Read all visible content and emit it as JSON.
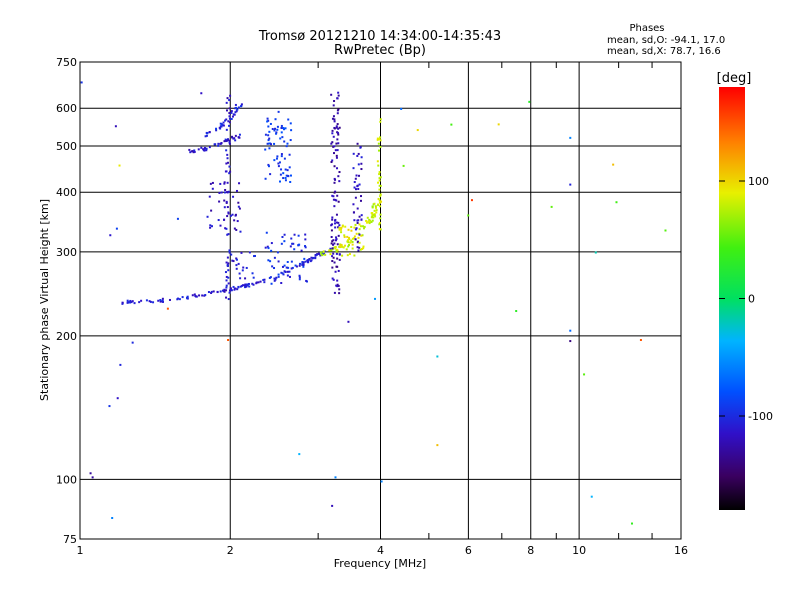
{
  "header": {
    "title_line1": "Tromsø 20121210 14:34:00-14:35:43",
    "title_line2": "RwPretec (Bp)"
  },
  "stats": {
    "heading": "Phases",
    "o_line": "mean, sd,O: -94.1, 17.0",
    "x_line": "mean, sd,X:  78.7, 16.6"
  },
  "colorbar": {
    "label": "[deg]",
    "min": -180,
    "max": 180,
    "ticks": [
      {
        "value": 100,
        "label": "100"
      },
      {
        "value": 0,
        "label": "0"
      },
      {
        "value": -100,
        "label": "-100"
      }
    ]
  },
  "chart_data": {
    "type": "scatter",
    "title": "Tromsø 20121210 14:34:00-14:35:43",
    "subtitle": "RwPretec (Bp)",
    "xlabel": "Frequency [MHz]",
    "ylabel": "Stationary phase Virtual Height [km]",
    "xscale": "log",
    "yscale": "log",
    "xlim": [
      1,
      16
    ],
    "ylim": [
      75,
      750
    ],
    "xticks": [
      {
        "value": 1,
        "label": "1"
      },
      {
        "value": 2,
        "label": "2"
      },
      {
        "value": 4,
        "label": "4"
      },
      {
        "value": 6,
        "label": "6"
      },
      {
        "value": 8,
        "label": "8"
      },
      {
        "value": 10,
        "label": "10"
      },
      {
        "value": 16,
        "label": "16"
      }
    ],
    "x_minor_ticks": [
      3,
      5,
      7,
      9,
      12,
      14
    ],
    "x_gridlines": [
      2,
      4,
      6,
      8,
      10
    ],
    "yticks": [
      {
        "value": 75,
        "label": "75"
      },
      {
        "value": 100,
        "label": "100"
      },
      {
        "value": 200,
        "label": "200"
      },
      {
        "value": 300,
        "label": "300"
      },
      {
        "value": 400,
        "label": "400"
      },
      {
        "value": 500,
        "label": "500"
      },
      {
        "value": 600,
        "label": "600"
      },
      {
        "value": 750,
        "label": "750"
      }
    ],
    "y_gridlines": [
      100,
      200,
      300,
      400,
      500,
      600
    ],
    "grid": true,
    "color_by": "phase_deg",
    "structures": [
      {
        "kind": "curve",
        "pts": [
          [
            1.2,
            235
          ],
          [
            1.4,
            236
          ],
          [
            1.6,
            240
          ],
          [
            1.8,
            245
          ],
          [
            2.0,
            250
          ],
          [
            2.2,
            256
          ],
          [
            2.4,
            263
          ],
          [
            2.6,
            272
          ],
          [
            2.8,
            283
          ],
          [
            3.0,
            295
          ],
          [
            3.2,
            305
          ]
        ],
        "phase": -108,
        "n": 140,
        "spread": 0.015
      },
      {
        "kind": "curve",
        "pts": [
          [
            3.0,
            297
          ],
          [
            3.2,
            300
          ],
          [
            3.4,
            310
          ],
          [
            3.6,
            325
          ],
          [
            3.8,
            350
          ],
          [
            3.9,
            370
          ],
          [
            3.95,
            390
          ]
        ],
        "phase": 78,
        "n": 75,
        "spread": 0.03
      },
      {
        "kind": "curve",
        "pts": [
          [
            1.65,
            485
          ],
          [
            1.8,
            495
          ],
          [
            2.0,
            515
          ],
          [
            2.1,
            525
          ]
        ],
        "phase": -112,
        "n": 40,
        "spread": 0.02
      },
      {
        "kind": "curve",
        "pts": [
          [
            1.75,
            520
          ],
          [
            1.9,
            545
          ],
          [
            2.0,
            570
          ],
          [
            2.05,
            600
          ],
          [
            2.1,
            610
          ]
        ],
        "phase": -105,
        "n": 40,
        "spread": 0.02
      },
      {
        "kind": "vline",
        "x": 1.98,
        "y": [
          235,
          640
        ],
        "phase": -112,
        "n": 60,
        "spread": 0.01
      },
      {
        "kind": "vline",
        "x": 3.25,
        "y": [
          245,
          650
        ],
        "phase": -125,
        "n": 110,
        "spread": 0.02
      },
      {
        "kind": "vline",
        "x": 3.6,
        "y": [
          300,
          520
        ],
        "phase": -118,
        "n": 45,
        "spread": 0.02
      },
      {
        "kind": "vline",
        "x": 3.98,
        "y": [
          330,
          570
        ],
        "phase": 82,
        "n": 35,
        "spread": 0.008
      },
      {
        "kind": "cluster",
        "x": [
          2.35,
          2.65
        ],
        "y": [
          420,
          590
        ],
        "phase": -92,
        "n": 70
      },
      {
        "kind": "cluster",
        "x": [
          2.35,
          2.85
        ],
        "y": [
          255,
          330
        ],
        "phase": -98,
        "n": 55
      },
      {
        "kind": "cluster",
        "x": [
          1.8,
          2.1
        ],
        "y": [
          330,
          420
        ],
        "phase": -118,
        "n": 40
      },
      {
        "kind": "cluster",
        "x": [
          3.3,
          3.7
        ],
        "y": [
          290,
          345
        ],
        "phase": 88,
        "n": 40
      },
      {
        "kind": "cluster",
        "x": [
          2.0,
          2.25
        ],
        "y": [
          260,
          300
        ],
        "phase": -110,
        "n": 20
      },
      {
        "kind": "cluster",
        "x": [
          1.0,
          1.6
        ],
        "y": [
          75,
          750
        ],
        "phase": -100,
        "n": 6
      },
      {
        "kind": "cluster",
        "x": [
          4.0,
          16.0
        ],
        "y": [
          75,
          750
        ],
        "phase": 40,
        "n": 10
      }
    ],
    "points": [
      {
        "x": 1.05,
        "y": 103,
        "phase": -130
      },
      {
        "x": 1.06,
        "y": 101,
        "phase": -128
      },
      {
        "x": 1.16,
        "y": 83,
        "phase": -60
      },
      {
        "x": 1.19,
        "y": 148,
        "phase": -115
      },
      {
        "x": 1.15,
        "y": 325,
        "phase": -112
      },
      {
        "x": 1.18,
        "y": 550,
        "phase": -120
      },
      {
        "x": 1.2,
        "y": 455,
        "phase": 92
      },
      {
        "x": 1.5,
        "y": 228,
        "phase": 150
      },
      {
        "x": 1.98,
        "y": 196,
        "phase": 150
      },
      {
        "x": 1.75,
        "y": 645,
        "phase": -115
      },
      {
        "x": 2.75,
        "y": 113,
        "phase": -40
      },
      {
        "x": 3.2,
        "y": 88,
        "phase": -120
      },
      {
        "x": 3.25,
        "y": 101,
        "phase": -60
      },
      {
        "x": 3.45,
        "y": 214,
        "phase": -120
      },
      {
        "x": 3.9,
        "y": 239,
        "phase": -50
      },
      {
        "x": 4.02,
        "y": 99,
        "phase": -60
      },
      {
        "x": 4.4,
        "y": 598,
        "phase": -70
      },
      {
        "x": 4.75,
        "y": 540,
        "phase": 100
      },
      {
        "x": 5.2,
        "y": 181,
        "phase": -30
      },
      {
        "x": 5.2,
        "y": 118,
        "phase": 110
      },
      {
        "x": 6.1,
        "y": 385,
        "phase": 160
      },
      {
        "x": 6.9,
        "y": 555,
        "phase": 100
      },
      {
        "x": 9.6,
        "y": 520,
        "phase": -60
      },
      {
        "x": 9.6,
        "y": 415,
        "phase": -105
      },
      {
        "x": 9.6,
        "y": 205,
        "phase": -70
      },
      {
        "x": 9.6,
        "y": 195,
        "phase": -140
      },
      {
        "x": 10.8,
        "y": 299,
        "phase": -20
      },
      {
        "x": 10.6,
        "y": 92,
        "phase": -40
      },
      {
        "x": 11.7,
        "y": 457,
        "phase": 110
      },
      {
        "x": 13.3,
        "y": 196,
        "phase": 150
      }
    ]
  }
}
